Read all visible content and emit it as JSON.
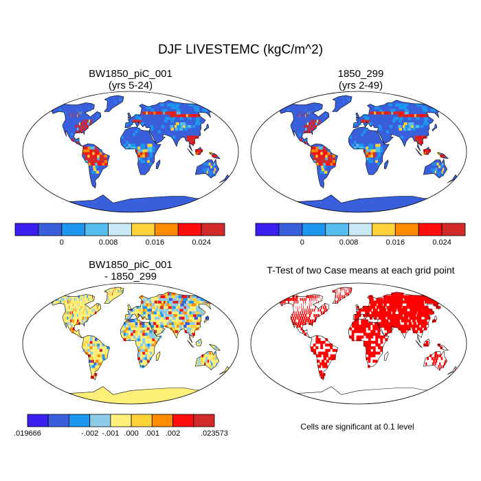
{
  "main_title": "DJF LIVESTEMC (kgC/m^2)",
  "panels": [
    {
      "id": "top-left",
      "title_line1": "BW1850_piC_001",
      "title_line2": "(yrs 5-24)"
    },
    {
      "id": "top-right",
      "title_line1": "1850_299",
      "title_line2": "(yrs 2-49)"
    },
    {
      "id": "bottom-left",
      "title_line1": "BW1850_piC_001",
      "title_line2": "- 1850_299"
    },
    {
      "id": "bottom-right",
      "title_line1": "T-Test of two Case means at each grid point",
      "title_line2": ""
    }
  ],
  "colorbar_main": {
    "colors": [
      "#3a1ef0",
      "#3a5fdc",
      "#1c96ee",
      "#56bdf0",
      "#c9e8f5",
      "#ffd23a",
      "#ff8c00",
      "#ff0d0d",
      "#d22a2a"
    ],
    "labels": [
      "0",
      "0.008",
      "0.016",
      "0.024"
    ]
  },
  "colorbar_diff": {
    "colors": [
      "#3a1ef0",
      "#3a5fdc",
      "#1c96ee",
      "#8ecbea",
      "#fff07a",
      "#ffd23a",
      "#ff8c00",
      "#ff0d0d",
      "#d22a2a"
    ],
    "labels": [
      ".019666",
      "-.002",
      "-.001",
      ".000",
      ".001",
      ".002",
      ".023573"
    ]
  },
  "significance_note": "Cells are significant at 0.1 level",
  "colors": {
    "ocean": "#ffffff",
    "land_base_mean": "#3a5fdc",
    "land_base_diff": "#fff07a",
    "sig": "#ff0000",
    "outline": "#000000"
  }
}
